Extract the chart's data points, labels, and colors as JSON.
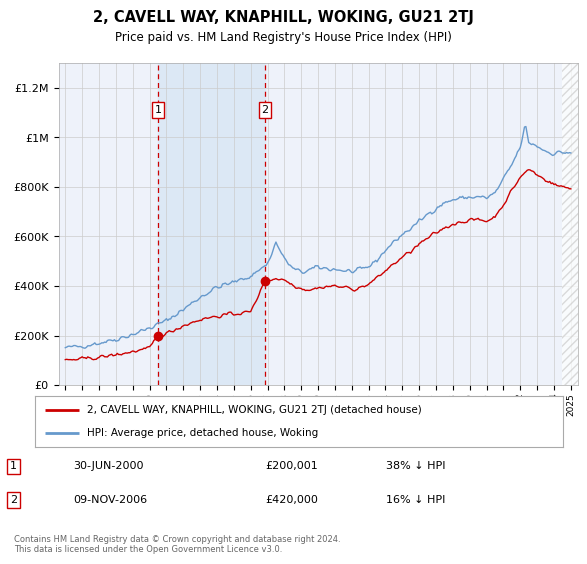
{
  "title": "2, CAVELL WAY, KNAPHILL, WOKING, GU21 2TJ",
  "subtitle": "Price paid vs. HM Land Registry's House Price Index (HPI)",
  "legend_line1": "2, CAVELL WAY, KNAPHILL, WOKING, GU21 2TJ (detached house)",
  "legend_line2": "HPI: Average price, detached house, Woking",
  "footnote": "Contains HM Land Registry data © Crown copyright and database right 2024.\nThis data is licensed under the Open Government Licence v3.0.",
  "transaction1_label": "1",
  "transaction1_date": "30-JUN-2000",
  "transaction1_price": "£200,001",
  "transaction1_hpi": "38% ↓ HPI",
  "transaction2_label": "2",
  "transaction2_date": "09-NOV-2006",
  "transaction2_price": "£420,000",
  "transaction2_hpi": "16% ↓ HPI",
  "transaction1_x": 2000.5,
  "transaction1_y": 200001,
  "transaction2_x": 2006.85,
  "transaction2_y": 420000,
  "ylim": [
    0,
    1300000
  ],
  "xlim_start": 1994.6,
  "xlim_end": 2025.4,
  "background_color": "#ffffff",
  "plot_bg_color": "#eef2fa",
  "grid_color": "#cccccc",
  "hpi_line_color": "#6699cc",
  "price_line_color": "#cc0000",
  "vline_color": "#cc0000",
  "shade_color": "#dce8f5",
  "marker_color": "#cc0000",
  "hatch_color": "#cccccc"
}
